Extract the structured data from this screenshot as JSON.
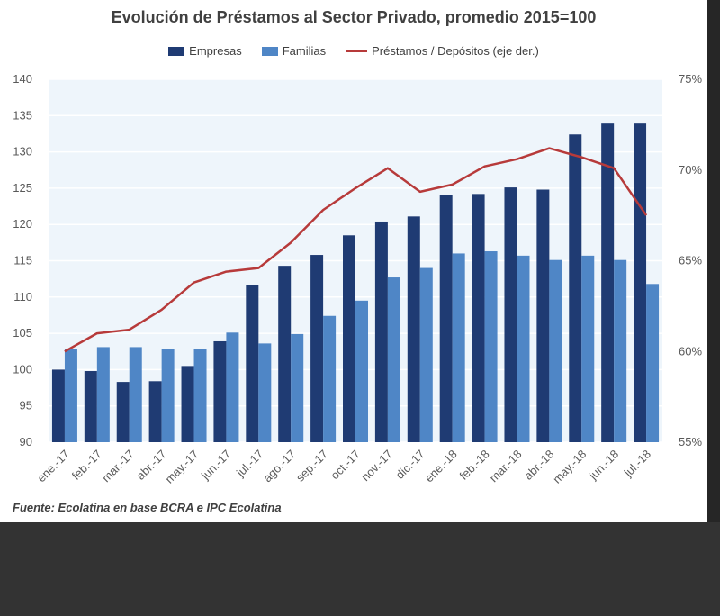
{
  "chart_data": {
    "type": "bar",
    "title": "Evolución de Préstamos al Sector Privado, promedio 2015=100",
    "source": "Fuente: Ecolatina en base BCRA e IPC Ecolatina",
    "categories": [
      "ene.-17",
      "feb.-17",
      "mar.-17",
      "abr.-17",
      "may.-17",
      "jun.-17",
      "jul.-17",
      "ago.-17",
      "sep.-17",
      "oct.-17",
      "nov.-17",
      "dic.-17",
      "ene.-18",
      "feb.-18",
      "mar.-18",
      "abr.-18",
      "may.-18",
      "jun.-18",
      "jul.-18"
    ],
    "series": [
      {
        "name": "Empresas",
        "type": "bar",
        "axis": "left",
        "color": "#1f3b73",
        "values": [
          100,
          99.8,
          98.3,
          98.4,
          100.5,
          103.9,
          111.6,
          114.3,
          115.8,
          118.5,
          120.4,
          121.1,
          124.1,
          124.2,
          125.1,
          124.8,
          132.4,
          133.9,
          133.9
        ]
      },
      {
        "name": "Familias",
        "type": "bar",
        "axis": "left",
        "color": "#4f86c6",
        "values": [
          102.9,
          103.1,
          103.1,
          102.8,
          102.9,
          105.1,
          103.6,
          104.9,
          107.4,
          109.5,
          112.7,
          114,
          116,
          116.3,
          115.7,
          115.1,
          115.7,
          115.1,
          111.8
        ]
      },
      {
        "name": "Préstamos / Depósitos (eje der.)",
        "type": "line",
        "axis": "right",
        "color": "#b73a3a",
        "values": [
          60,
          61,
          61.2,
          62.3,
          63.8,
          64.4,
          64.6,
          66,
          67.8,
          69,
          70.1,
          68.8,
          69.2,
          70.2,
          70.6,
          71.2,
          70.7,
          70.1,
          67.5
        ]
      }
    ],
    "y_left": {
      "min": 90,
      "max": 140,
      "step": 5,
      "ticks": [
        "90",
        "95",
        "100",
        "105",
        "110",
        "115",
        "120",
        "125",
        "130",
        "135",
        "140"
      ]
    },
    "y_right": {
      "min": 55,
      "max": 75,
      "step": 5,
      "ticks": [
        "55%",
        "60%",
        "65%",
        "70%",
        "75%"
      ]
    },
    "grid": true,
    "legend_position": "top"
  }
}
